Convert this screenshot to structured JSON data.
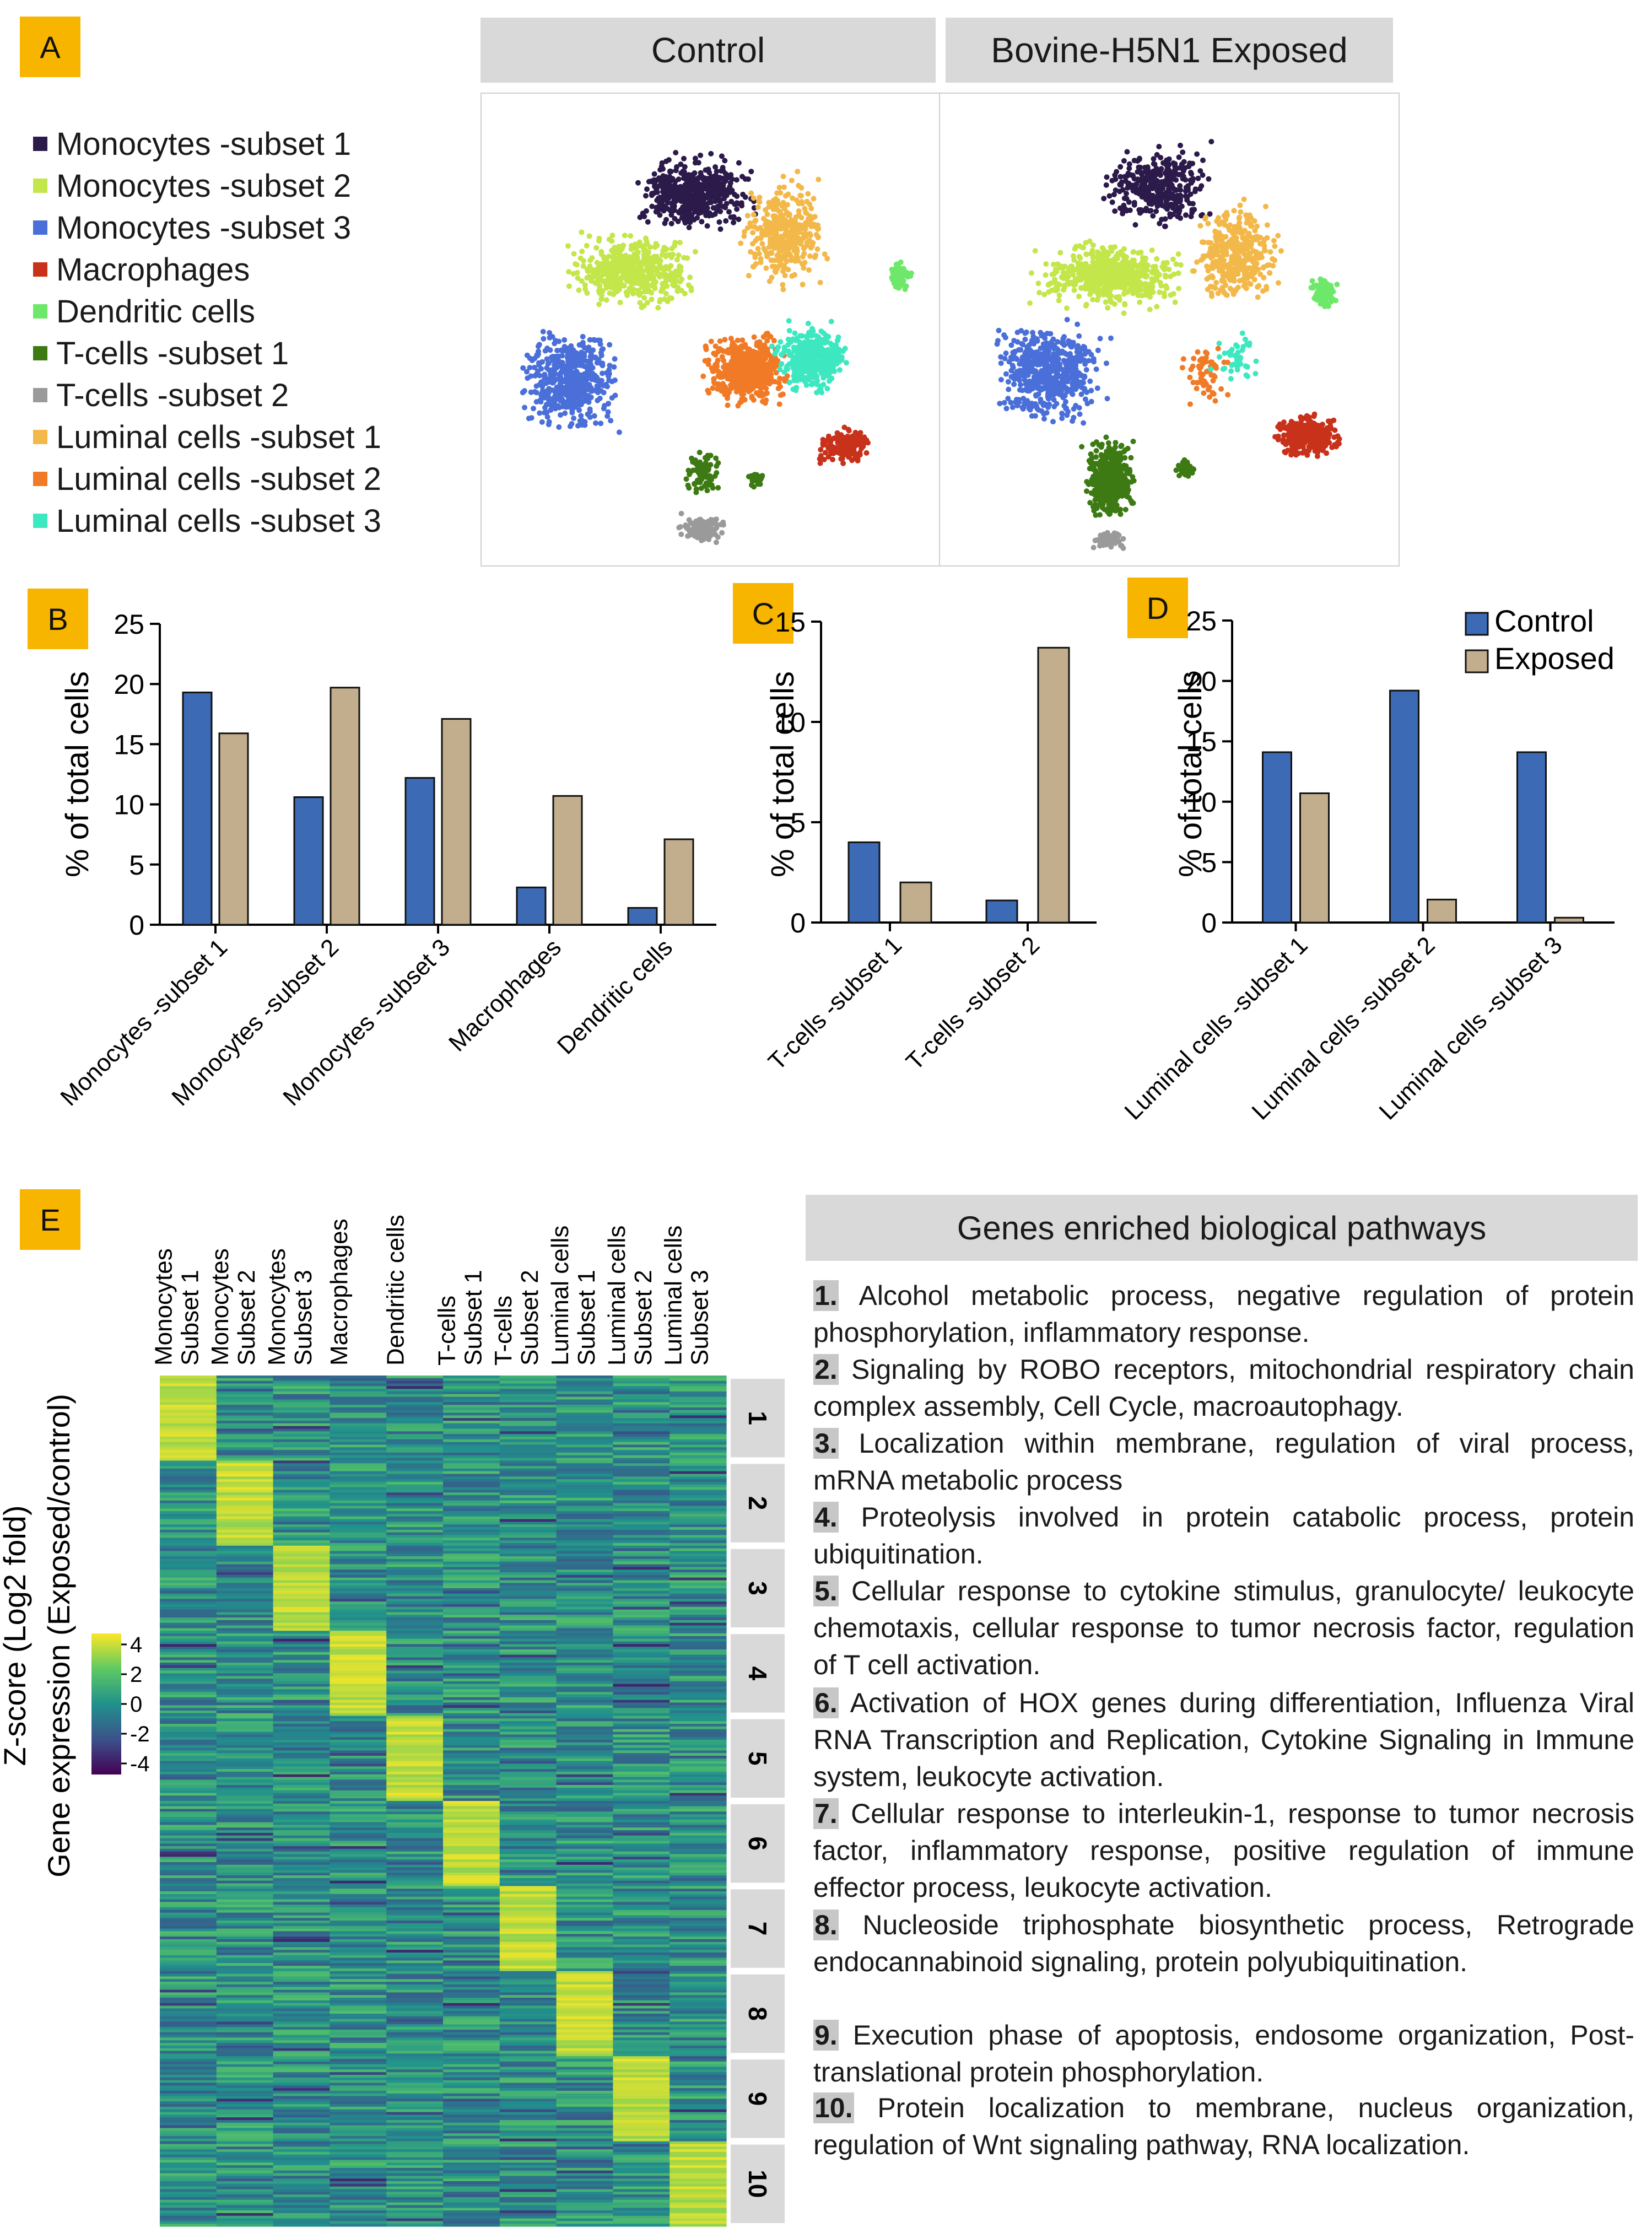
{
  "panels": {
    "A": "A",
    "B": "B",
    "C": "C",
    "D": "D",
    "E": "E"
  },
  "umap": {
    "headers": [
      "Control",
      "Bovine-H5N1 Exposed"
    ],
    "clusters": [
      {
        "name": "Monocytes -subset 1",
        "color": "#2b1a4a"
      },
      {
        "name": "Monocytes -subset 2",
        "color": "#c3e64a"
      },
      {
        "name": "Monocytes -subset 3",
        "color": "#4a6fd8"
      },
      {
        "name": "Macrophages",
        "color": "#c8311a"
      },
      {
        "name": "Dendritic cells",
        "color": "#6ee86a"
      },
      {
        "name": "T-cells -subset 1",
        "color": "#3d7a14"
      },
      {
        "name": "T-cells -subset 2",
        "color": "#9a9a9a"
      },
      {
        "name": "Luminal cells -subset 1",
        "color": "#f3b84a"
      },
      {
        "name": "Luminal cells -subset 2",
        "color": "#f07a26"
      },
      {
        "name": "Luminal cells -subset 3",
        "color": "#3de8c0"
      }
    ]
  },
  "chart_data": [
    {
      "id": "B",
      "type": "bar",
      "ylabel": "% of total cells",
      "ylim": [
        0,
        25
      ],
      "yticks": [
        "0",
        "5",
        "10",
        "15",
        "20",
        "25"
      ],
      "categories": [
        "Monocytes -subset 1",
        "Monocytes -subset 2",
        "Monocytes -subset 3",
        "Macrophages",
        "Dendritic cells"
      ],
      "series": [
        {
          "name": "Control",
          "color": "#3c6ab5",
          "values": [
            19.3,
            10.6,
            12.2,
            3.1,
            1.4
          ]
        },
        {
          "name": "Exposed",
          "color": "#c2ae8c",
          "values": [
            15.9,
            19.7,
            17.1,
            10.7,
            7.1
          ]
        }
      ]
    },
    {
      "id": "C",
      "type": "bar",
      "ylabel": "% of total cells",
      "ylim": [
        0,
        15
      ],
      "yticks": [
        "0",
        "5",
        "10",
        "15"
      ],
      "categories": [
        "T-cells -subset 1",
        "T-cells -subset 2"
      ],
      "series": [
        {
          "name": "Control",
          "color": "#3c6ab5",
          "values": [
            4.0,
            1.1
          ]
        },
        {
          "name": "Exposed",
          "color": "#c2ae8c",
          "values": [
            2.0,
            13.7
          ]
        }
      ]
    },
    {
      "id": "D",
      "type": "bar",
      "ylabel": "% of total cells",
      "ylim": [
        0,
        25
      ],
      "yticks": [
        "0",
        "5",
        "10",
        "15",
        "20",
        "25"
      ],
      "legend": "top-right",
      "categories": [
        "Luminal cells -subset 1",
        "Luminal cells -subset 2",
        "Luminal cells -subset 3"
      ],
      "series": [
        {
          "name": "Control",
          "color": "#3c6ab5",
          "values": [
            14.1,
            19.2,
            14.1
          ]
        },
        {
          "name": "Exposed",
          "color": "#c2ae8c",
          "values": [
            10.7,
            1.9,
            0.4
          ]
        }
      ]
    },
    {
      "id": "E",
      "type": "heatmap",
      "ylabel_lines": [
        "Gene expression (Exposed/control)",
        "Z-score (Log2 fold)"
      ],
      "columns": [
        [
          "Monocytes",
          "Subset 1"
        ],
        [
          "Monocytes",
          "Subset 2"
        ],
        [
          "Monocytes",
          "Subset 3"
        ],
        [
          "Macrophages"
        ],
        [
          "Dendritic cells"
        ],
        [
          "T-cells",
          "Subset 1"
        ],
        [
          "T-cells",
          "Subset 2"
        ],
        [
          "Luminal cells",
          "Subset 1"
        ],
        [
          "Luminal cells",
          "Subset 2"
        ],
        [
          "Luminal cells",
          "Subset 3"
        ]
      ],
      "row_blocks": [
        "1",
        "2",
        "3",
        "4",
        "5",
        "6",
        "7",
        "8",
        "9",
        "10"
      ],
      "colorbar_ticks": [
        "4",
        "2",
        "0",
        "-2",
        "-4"
      ],
      "colorscale": [
        "#fde725",
        "#5ec962",
        "#21918c",
        "#3b528b",
        "#440154"
      ],
      "value_range": [
        -4,
        4
      ]
    }
  ],
  "pathways": {
    "title": "Genes enriched biological pathways",
    "items": [
      {
        "num": "1.",
        "text": " Alcohol metabolic process, negative regulation of protein phosphorylation, inflammatory response."
      },
      {
        "num": "2.",
        "text": " Signaling by ROBO receptors, mitochondrial respiratory chain complex assembly, Cell Cycle, macroautophagy."
      },
      {
        "num": "3.",
        "text": " Localization within membrane, regulation of viral process, mRNA metabolic process"
      },
      {
        "num": "4.",
        "text": " Proteolysis involved in protein catabolic process, protein ubiquitination."
      },
      {
        "num": "5.",
        "text": " Cellular response to cytokine stimulus, granulocyte/ leukocyte chemotaxis, cellular response to tumor necrosis factor, regulation of T cell activation."
      },
      {
        "num": "6.",
        "text": " Activation of HOX genes during differentiation, Influenza Viral RNA Transcription and Replication, Cytokine Signaling in Immune system, leukocyte activation."
      },
      {
        "num": "7.",
        "text": " Cellular response to interleukin-1, response to tumor necrosis factor, inflammatory response, positive regulation of immune effector process, leukocyte activation."
      },
      {
        "num": "8.",
        "text": " Nucleoside triphosphate biosynthetic process, Retrograde endocannabinoid signaling, protein polyubiquitination."
      },
      {
        "num": "9.",
        "text": " Execution phase of apoptosis, endosome organization, Post-translational protein phosphorylation."
      },
      {
        "num": "10.",
        "text": " Protein localization to membrane, nucleus organization, regulation of Wnt signaling pathway, RNA localization."
      }
    ]
  }
}
